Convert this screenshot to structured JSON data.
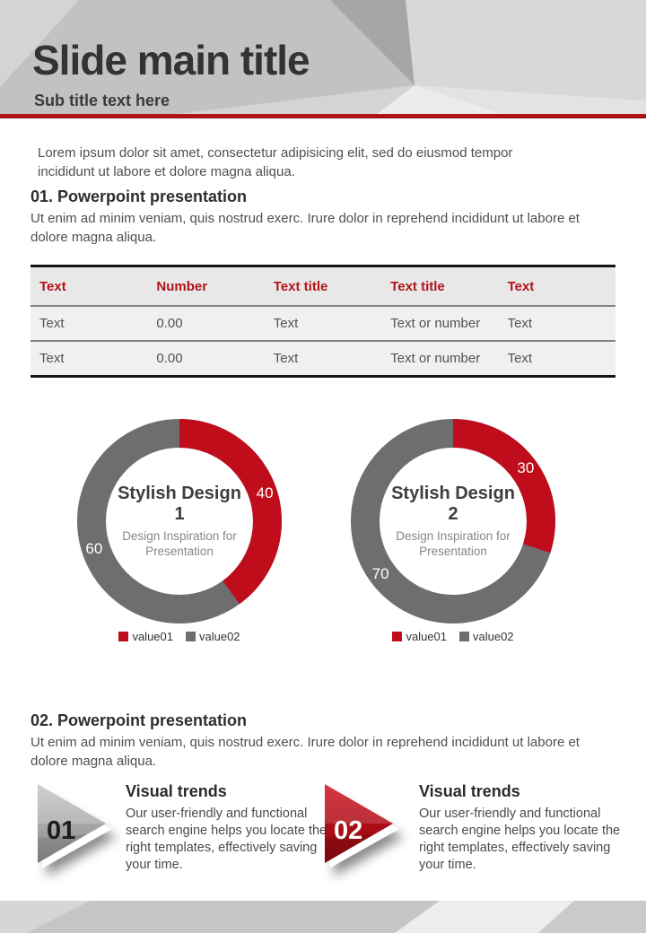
{
  "header": {
    "title": "Slide main title",
    "subtitle": "Sub title text here"
  },
  "intro": {
    "text": "Lorem ipsum dolor sit amet, consectetur adipisicing elit, sed do eiusmod tempor incididunt ut labore et dolore magna aliqua."
  },
  "sections": [
    {
      "heading": "01. Powerpoint presentation",
      "body": "Ut enim ad minim veniam, quis nostrud exerc. Irure dolor in reprehend incididunt ut labore et dolore magna aliqua."
    },
    {
      "heading": "02. Powerpoint presentation",
      "body": "Ut enim ad minim veniam, quis nostrud exerc. Irure dolor in reprehend incididunt ut labore et dolore magna aliqua."
    }
  ],
  "table": {
    "headers": [
      "Text",
      "Number",
      "Text title",
      "Text title",
      "Text"
    ],
    "rows": [
      [
        "Text",
        "0.00",
        "Text",
        "Text or number",
        "Text"
      ],
      [
        "Text",
        "0.00",
        "Text",
        "Text or number",
        "Text"
      ]
    ]
  },
  "chart_data": [
    {
      "type": "pie",
      "variant": "donut",
      "title": "Stylish Design 1",
      "subtitle": "Design Inspiration for Presentation",
      "series": [
        {
          "name": "value01",
          "value": 40,
          "color": "#c00d1c"
        },
        {
          "name": "value02",
          "value": 60,
          "color": "#6e6e6e"
        }
      ],
      "start_angle": "top-clockwise",
      "legend_position": "bottom",
      "data_labels": "values shown in white on slices"
    },
    {
      "type": "pie",
      "variant": "donut",
      "title": "Stylish Design 2",
      "subtitle": "Design Inspiration for Presentation",
      "series": [
        {
          "name": "value01",
          "value": 30,
          "color": "#c00d1c"
        },
        {
          "name": "value02",
          "value": 70,
          "color": "#6e6e6e"
        }
      ],
      "start_angle": "top-clockwise",
      "legend_position": "bottom",
      "data_labels": "values shown in white on slices"
    }
  ],
  "features": [
    {
      "number": "01",
      "title": "Visual trends",
      "body": "Our user-friendly and functional search engine helps you locate the right templates, effectively saving your time."
    },
    {
      "number": "02",
      "title": "Visual trends",
      "body": "Our user-friendly and functional search engine helps you locate the right templates, effectively saving your time."
    }
  ],
  "colors": {
    "accent_line": "#b5121a",
    "table_header_text": "#b2131a",
    "chart_red": "#c00d1c",
    "chart_gray": "#6e6e6e"
  }
}
